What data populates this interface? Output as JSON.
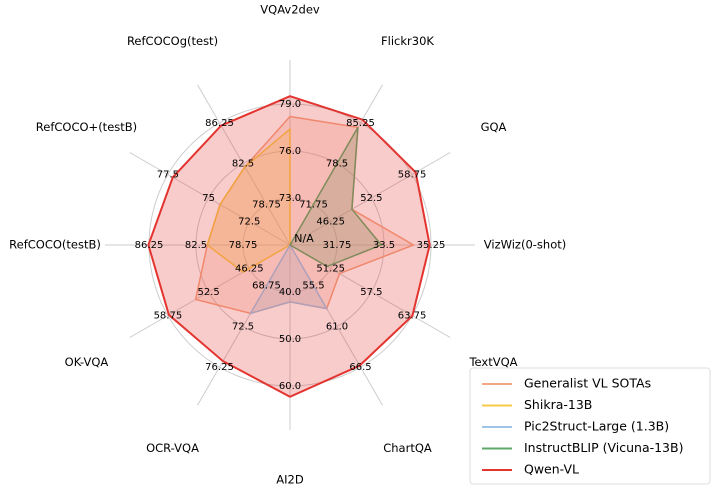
{
  "chart_data": {
    "type": "radar",
    "center_label": "N/A",
    "axes": [
      {
        "name": "VQAv2dev",
        "lim": [
          70,
          79
        ],
        "ticks": [
          {
            "value": 73,
            "label": "73.0"
          },
          {
            "value": 76,
            "label": "76.0"
          },
          {
            "value": 79,
            "label": "79.0"
          }
        ]
      },
      {
        "name": "Flickr30K",
        "lim": [
          65,
          85.25
        ],
        "ticks": [
          71.75,
          78.5,
          85.25
        ]
      },
      {
        "name": "GQA",
        "lim": [
          40,
          58.75
        ],
        "ticks": [
          46.25,
          52.5,
          58.75
        ]
      },
      {
        "name": "VizWiz(0-shot)",
        "lim": [
          30,
          35.25
        ],
        "ticks": [
          31.75,
          33.5,
          35.25
        ]
      },
      {
        "name": "TextVQA",
        "lim": [
          45,
          63.75
        ],
        "ticks": [
          51.25,
          57.5,
          63.75
        ]
      },
      {
        "name": "ChartQA",
        "lim": [
          50,
          66.5
        ],
        "ticks": [
          55.5,
          {
            "value": 61,
            "label": "61.0"
          },
          66.5
        ]
      },
      {
        "name": "AI2D",
        "lim": [
          30,
          60
        ],
        "ticks": [
          {
            "value": 40,
            "label": "40.0"
          },
          {
            "value": 50,
            "label": "50.0"
          },
          {
            "value": 60,
            "label": "60.0"
          }
        ]
      },
      {
        "name": "OCR-VQA",
        "lim": [
          65,
          76.25
        ],
        "ticks": [
          68.75,
          72.5,
          76.25
        ]
      },
      {
        "name": "OK-VQA",
        "lim": [
          40,
          58.75
        ],
        "ticks": [
          46.25,
          52.5,
          58.75
        ]
      },
      {
        "name": "RefCOCO(testB)",
        "lim": [
          75,
          86.25
        ],
        "ticks": [
          78.75,
          82.5,
          86.25
        ]
      },
      {
        "name": "RefCOCO+(testB)",
        "lim": [
          70,
          77.5
        ],
        "ticks": [
          72.5,
          75,
          77.5
        ]
      },
      {
        "name": "RefCOCOg(test)",
        "lim": [
          75,
          86.25
        ],
        "ticks": [
          78.75,
          82.5,
          86.25
        ]
      }
    ],
    "series": [
      {
        "name": "Generalist VL SOTAs",
        "color": "#f4a582",
        "values": [
          78.2,
          84.5,
          49.5,
          34.6,
          52.6,
          58.6,
          42.1,
          71.3,
          54.5,
          81.6,
          74.3,
          82.2
        ]
      },
      {
        "name": "Shikra-13B",
        "color": "#f7c948",
        "values": [
          77.4,
          null,
          null,
          null,
          null,
          null,
          null,
          null,
          47.2,
          81.6,
          74.3,
          82.2
        ]
      },
      {
        "name": "Pic2Struct-Large (1.3B)",
        "color": "#9ec5e8",
        "values": [
          null,
          null,
          null,
          null,
          null,
          58.6,
          42.1,
          71.3,
          null,
          null,
          null,
          null
        ]
      },
      {
        "name": "InstructBLIP (Vicuna-13B)",
        "color": "#5fa86a",
        "values": [
          null,
          84.5,
          49.5,
          33.4,
          50.7,
          null,
          null,
          null,
          null,
          null,
          null,
          null
        ]
      },
      {
        "name": "Qwen-VL",
        "color": "#e3342f",
        "values": [
          79.5,
          85.8,
          59.3,
          35.2,
          63.8,
          66.3,
          62.3,
          75.7,
          58.6,
          86.3,
          77.2,
          86.0
        ]
      }
    ]
  }
}
